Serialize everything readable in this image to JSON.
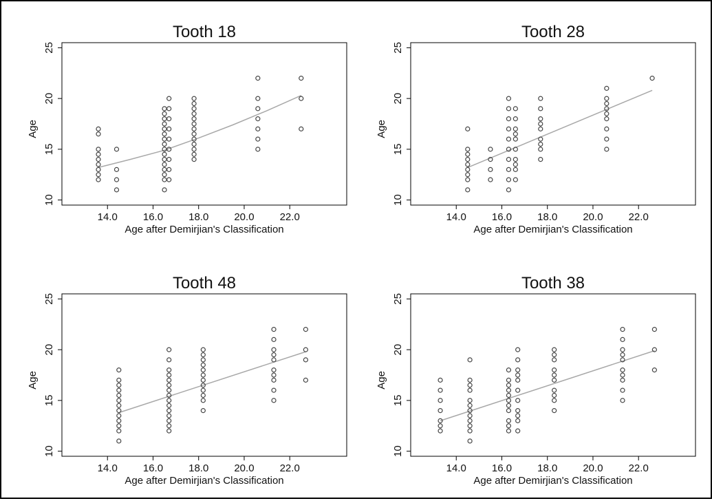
{
  "chart_data": [
    {
      "type": "scatter",
      "title": "Tooth 18",
      "xlabel": "Age after Demirjian's Classification",
      "ylabel": "Age",
      "xlim": [
        12.0,
        24.5
      ],
      "ylim": [
        9.5,
        25.5
      ],
      "xticks": [
        "14.0",
        "16.0",
        "18.0",
        "20.0",
        "22.0"
      ],
      "yticks": [
        "10",
        "15",
        "20",
        "25"
      ],
      "groups": [
        {
          "x": 13.6,
          "y": [
            12,
            12.5,
            13,
            13.5,
            14,
            14.5,
            15,
            16.5,
            17
          ]
        },
        {
          "x": 14.4,
          "y": [
            11,
            12,
            13,
            15
          ]
        },
        {
          "x": 16.5,
          "y": [
            11,
            12,
            12.5,
            13,
            13.5,
            14,
            14.5,
            15,
            15.5,
            16,
            16.5,
            17,
            17.5,
            18,
            18.5,
            19
          ]
        },
        {
          "x": 16.7,
          "y": [
            12,
            13,
            14,
            15,
            16,
            17,
            18,
            19,
            20
          ]
        },
        {
          "x": 17.8,
          "y": [
            14,
            14.5,
            15,
            15.5,
            16,
            16.5,
            17,
            17.5,
            18,
            18.5,
            19,
            19.5,
            20
          ]
        },
        {
          "x": 20.6,
          "y": [
            15,
            16,
            17,
            18,
            19,
            20,
            22
          ]
        },
        {
          "x": 22.5,
          "y": [
            17,
            20,
            22
          ]
        }
      ],
      "fit": {
        "x": [
          13.6,
          15.0,
          16.5,
          18.0,
          19.5,
          21.0,
          22.5
        ],
        "y": [
          13.2,
          14.0,
          14.9,
          16.1,
          17.4,
          18.8,
          20.3
        ]
      }
    },
    {
      "type": "scatter",
      "title": "Tooth 28",
      "xlabel": "Age after Demirjian's Classification",
      "ylabel": "Age",
      "xlim": [
        12.0,
        24.5
      ],
      "ylim": [
        9.5,
        25.5
      ],
      "xticks": [
        "14.0",
        "16.0",
        "18.0",
        "20.0",
        "22.0"
      ],
      "yticks": [
        "10",
        "15",
        "20",
        "25"
      ],
      "groups": [
        {
          "x": 14.5,
          "y": [
            11,
            12,
            12.5,
            13,
            13.5,
            14,
            14.5,
            15,
            17
          ]
        },
        {
          "x": 15.5,
          "y": [
            12,
            13,
            14,
            15
          ]
        },
        {
          "x": 16.3,
          "y": [
            11,
            12,
            13,
            14,
            15,
            16,
            17,
            18,
            19,
            20
          ]
        },
        {
          "x": 16.6,
          "y": [
            12,
            13,
            13.5,
            14,
            15,
            16,
            16.5,
            17,
            18,
            19
          ]
        },
        {
          "x": 17.7,
          "y": [
            14,
            15,
            15.5,
            16,
            17,
            17.5,
            18,
            19,
            20
          ]
        },
        {
          "x": 20.6,
          "y": [
            15,
            16,
            17,
            18,
            18.5,
            19,
            19.5,
            20,
            21
          ]
        },
        {
          "x": 22.6,
          "y": [
            22
          ]
        }
      ],
      "fit": {
        "x": [
          14.5,
          22.6
        ],
        "y": [
          13.2,
          20.8
        ]
      }
    },
    {
      "type": "scatter",
      "title": "Tooth 48",
      "xlabel": "Age after Demirjian's Classification",
      "ylabel": "Age",
      "xlim": [
        12.0,
        24.5
      ],
      "ylim": [
        9.5,
        25.5
      ],
      "xticks": [
        "14.0",
        "16.0",
        "18.0",
        "20.0",
        "22.0"
      ],
      "yticks": [
        "10",
        "15",
        "20",
        "25"
      ],
      "groups": [
        {
          "x": 14.5,
          "y": [
            11,
            12,
            12.5,
            13,
            13.5,
            14,
            14.5,
            15,
            15.5,
            16,
            16.5,
            17,
            18
          ]
        },
        {
          "x": 16.7,
          "y": [
            12,
            12.5,
            13,
            13.5,
            14,
            14.5,
            15,
            15.5,
            16,
            16.5,
            17,
            17.5,
            18,
            19,
            20
          ]
        },
        {
          "x": 18.2,
          "y": [
            14,
            15,
            15.5,
            16,
            16.5,
            17,
            17.5,
            18,
            18.5,
            19,
            19.5,
            20
          ]
        },
        {
          "x": 21.3,
          "y": [
            15,
            16,
            17,
            17.5,
            18,
            19,
            19.5,
            20,
            21,
            22
          ]
        },
        {
          "x": 22.7,
          "y": [
            17,
            19,
            20,
            22
          ]
        }
      ],
      "fit": {
        "x": [
          14.5,
          22.7
        ],
        "y": [
          13.8,
          19.8
        ]
      }
    },
    {
      "type": "scatter",
      "title": "Tooth 38",
      "xlabel": "Age after Demirjian's Classification",
      "ylabel": "Age",
      "xlim": [
        12.0,
        24.5
      ],
      "ylim": [
        9.5,
        25.5
      ],
      "xticks": [
        "14.0",
        "16.0",
        "18.0",
        "20.0",
        "22.0"
      ],
      "yticks": [
        "10",
        "15",
        "20",
        "25"
      ],
      "groups": [
        {
          "x": 13.3,
          "y": [
            12,
            12.5,
            13,
            14,
            15,
            16,
            17
          ]
        },
        {
          "x": 14.6,
          "y": [
            11,
            12,
            12.5,
            13,
            13.5,
            14,
            14.5,
            15,
            16,
            16.5,
            17,
            19
          ]
        },
        {
          "x": 16.3,
          "y": [
            12,
            12.5,
            13,
            14,
            14.5,
            15,
            15.5,
            16,
            16.5,
            17,
            18
          ]
        },
        {
          "x": 16.7,
          "y": [
            12,
            13,
            13.5,
            14,
            15,
            16,
            17,
            17.5,
            18,
            19,
            20
          ]
        },
        {
          "x": 18.3,
          "y": [
            14,
            15,
            15.5,
            16,
            17,
            17.5,
            18,
            19,
            19.5,
            20
          ]
        },
        {
          "x": 21.3,
          "y": [
            15,
            16,
            17,
            17.5,
            18,
            19,
            19.5,
            20,
            21,
            22
          ]
        },
        {
          "x": 22.7,
          "y": [
            18,
            20,
            22
          ]
        }
      ],
      "fit": {
        "x": [
          13.3,
          22.7
        ],
        "y": [
          13.0,
          19.9
        ]
      }
    }
  ]
}
